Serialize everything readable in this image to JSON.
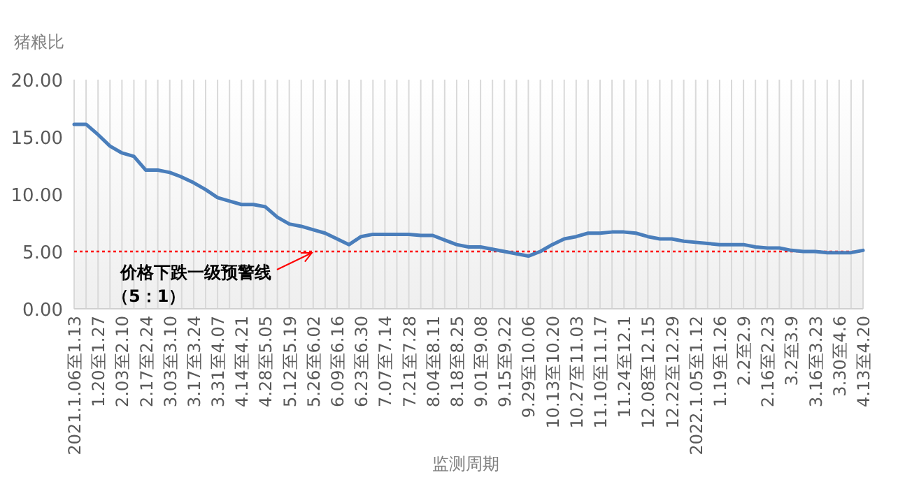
{
  "chart_data": {
    "type": "line",
    "ylabel": "猪粮比",
    "xlabel": "监测周期",
    "categories": [
      "2021.1.06至1.13",
      null,
      "1.20至1.27",
      null,
      "2.03至2.10",
      null,
      "2.17至2.24",
      null,
      "3.03至3.10",
      null,
      "3.17至3.24",
      null,
      "3.31至4.07",
      null,
      "4.14至4.21",
      null,
      "4.28至5.05",
      null,
      "5.12至5.19",
      null,
      "5.26至6.02",
      null,
      "6.09至6.16",
      null,
      "6.23至6.30",
      null,
      "7.07至7.14",
      null,
      "7.21至7.28",
      null,
      "8.04至8.11",
      null,
      "8.18至8.25",
      null,
      "9.01至9.08",
      null,
      "9.15至9.22",
      null,
      "9.29至10.06",
      null,
      "10.13至10.20",
      null,
      "10.27至11.03",
      null,
      "11.10至11.17",
      null,
      "11.24至12.1",
      null,
      "12.08至12.15",
      null,
      "12.22至12.29",
      null,
      "2022.1.05至1.12",
      null,
      "1.19至1.26",
      null,
      "2.2至2.9",
      null,
      "2.16至2.23",
      null,
      "3.2至3.9",
      null,
      "3.16至3.23",
      null,
      "3.30至4.6",
      null,
      "4.13至4.20"
    ],
    "series": [
      {
        "color": "#4a7ebb",
        "values": [
          16.1,
          16.1,
          15.2,
          14.2,
          13.6,
          13.3,
          12.1,
          12.1,
          11.9,
          11.5,
          11.0,
          10.4,
          9.7,
          9.4,
          9.1,
          9.1,
          8.9,
          8.0,
          7.4,
          7.2,
          6.9,
          6.6,
          6.1,
          5.6,
          6.3,
          6.5,
          6.5,
          6.5,
          6.5,
          6.4,
          6.4,
          6.0,
          5.6,
          5.4,
          5.4,
          5.2,
          5.0,
          4.8,
          4.6,
          5.0,
          5.6,
          6.1,
          6.3,
          6.6,
          6.6,
          6.7,
          6.7,
          6.6,
          6.3,
          6.1,
          6.1,
          5.9,
          5.8,
          5.7,
          5.6,
          5.6,
          5.6,
          5.4,
          5.3,
          5.3,
          5.1,
          5.0,
          5.0,
          4.9,
          4.9,
          4.9,
          5.1
        ]
      }
    ],
    "ylim": [
      0,
      20
    ],
    "yticks": [
      {
        "value": 0,
        "label": "0.00"
      },
      {
        "value": 5,
        "label": "5.00"
      },
      {
        "value": 10,
        "label": "10.00"
      },
      {
        "value": 15,
        "label": "15.00"
      },
      {
        "value": 20,
        "label": "20.00"
      }
    ],
    "grid": "x",
    "marker": "none",
    "line_style": "solid",
    "ref_lines": [
      {
        "axis": "y",
        "value": 5,
        "color": "#ff0000",
        "line_style": "dotted"
      }
    ],
    "annotations": [
      {
        "text": "价格下跌一级预警线",
        "x": "5.26至6.02",
        "y": 5
      },
      "（5：1）"
    ]
  }
}
